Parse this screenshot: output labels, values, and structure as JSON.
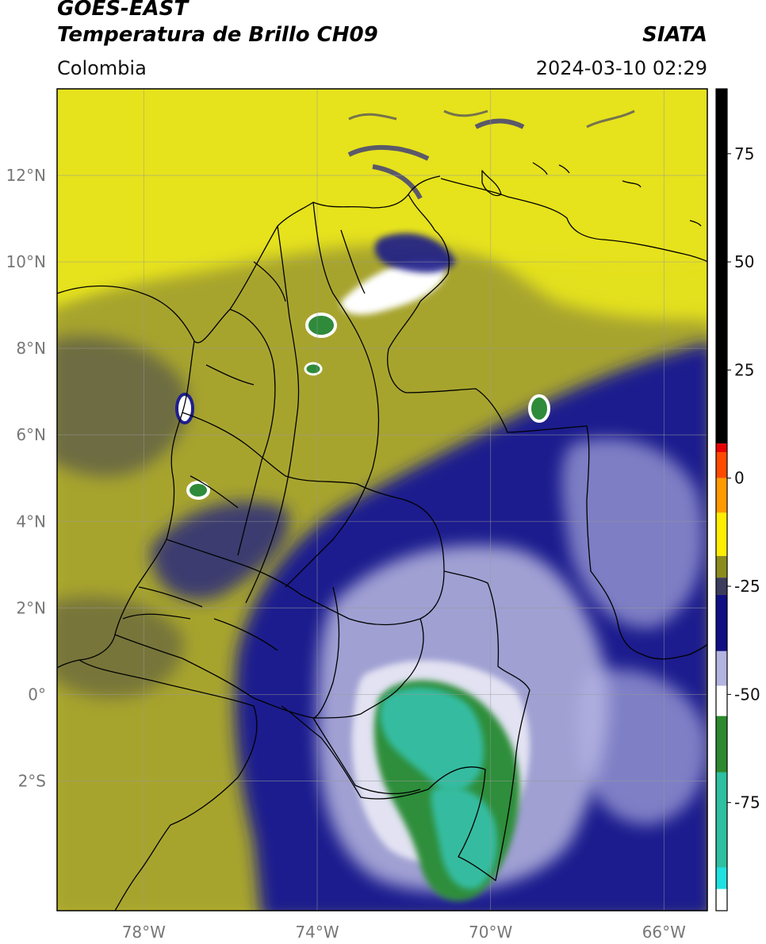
{
  "header": {
    "line1": "GOES-EAST",
    "line2": "Temperatura de Brillo CH09",
    "organization": "SIATA",
    "region": "Colombia",
    "datetime": "2024-03-10 02:29"
  },
  "map": {
    "lon_range": [
      -80,
      -65
    ],
    "lat_range": [
      -5,
      14
    ],
    "lat_ticks": [
      {
        "value": 12,
        "label": "12°N"
      },
      {
        "value": 10,
        "label": "10°N"
      },
      {
        "value": 8,
        "label": "8°N"
      },
      {
        "value": 6,
        "label": "6°N"
      },
      {
        "value": 4,
        "label": "4°N"
      },
      {
        "value": 2,
        "label": "2°N"
      },
      {
        "value": 0,
        "label": "0°"
      },
      {
        "value": -2,
        "label": "2°S"
      }
    ],
    "lon_ticks": [
      {
        "value": -78,
        "label": "78°W"
      },
      {
        "value": -74,
        "label": "74°W"
      },
      {
        "value": -70,
        "label": "70°W"
      },
      {
        "value": -66,
        "label": "66°W"
      }
    ],
    "grid": true
  },
  "colorbar": {
    "range": [
      -100,
      90
    ],
    "ticks": [
      {
        "value": 75,
        "label": "75"
      },
      {
        "value": 50,
        "label": "50"
      },
      {
        "value": 25,
        "label": "25"
      },
      {
        "value": 0,
        "label": "0"
      },
      {
        "value": -25,
        "label": "-25"
      },
      {
        "value": -50,
        "label": "-50"
      },
      {
        "value": -75,
        "label": "-75"
      }
    ],
    "segments": [
      {
        "from": 8,
        "to": 90,
        "color": "#000000"
      },
      {
        "from": 6,
        "to": 8,
        "color": "#e80000"
      },
      {
        "from": 0,
        "to": 6,
        "color": "#ff4a00"
      },
      {
        "from": -8,
        "to": 0,
        "color": "#ff9a00"
      },
      {
        "from": -18,
        "to": -8,
        "color": "#ffee00"
      },
      {
        "from": -23,
        "to": -18,
        "color": "#8c8c1e"
      },
      {
        "from": -27,
        "to": -23,
        "color": "#3c3c5c"
      },
      {
        "from": -40,
        "to": -27,
        "color": "#101084"
      },
      {
        "from": -48,
        "to": -40,
        "color": "#b4b4e0"
      },
      {
        "from": -55,
        "to": -48,
        "color": "#ffffff"
      },
      {
        "from": -68,
        "to": -55,
        "color": "#2e8a2e"
      },
      {
        "from": -90,
        "to": -68,
        "color": "#2ec0a0"
      },
      {
        "from": -95,
        "to": -90,
        "color": "#20e0e0"
      },
      {
        "from": -100,
        "to": -95,
        "color": "#ffffff"
      }
    ]
  },
  "colors": {
    "warm": "#eaea1a",
    "mid_olive": "#a8a832",
    "cold_blue": "#1a1a8c",
    "very_cold_white": "#e6e6f4",
    "coldest_green": "#2eb494"
  }
}
